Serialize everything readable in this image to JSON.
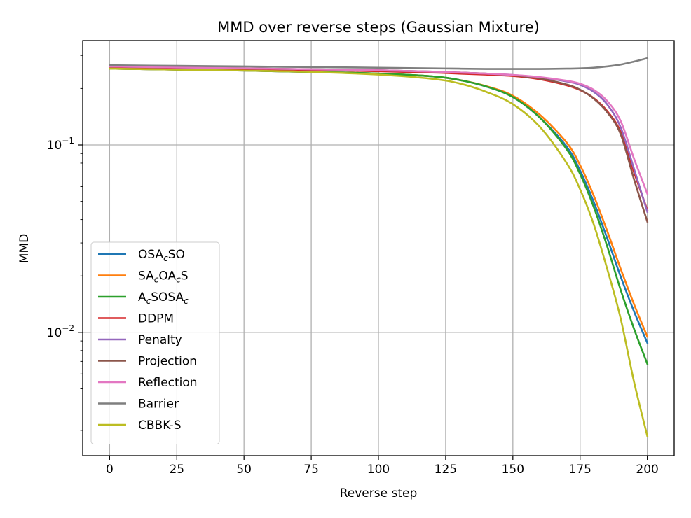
{
  "chart_data": {
    "type": "line",
    "title": "MMD over reverse steps (Gaussian Mixture)",
    "xlabel": "Reverse step",
    "ylabel": "MMD",
    "xlim": [
      -10,
      210
    ],
    "ylim": [
      0.0022,
      0.36
    ],
    "yscale": "log",
    "grid": true,
    "legend_position": "lower-left",
    "x_ticks": [
      0,
      25,
      50,
      75,
      100,
      125,
      150,
      175,
      200
    ],
    "y_ticks": [
      {
        "value": 0.1,
        "base": "10",
        "exp": "−1"
      },
      {
        "value": 0.01,
        "base": "10",
        "exp": "−2"
      }
    ],
    "x": [
      0,
      25,
      50,
      75,
      100,
      120,
      130,
      140,
      150,
      160,
      170,
      175,
      180,
      185,
      190,
      195,
      200
    ],
    "series": [
      {
        "name": "OSA_cSO",
        "label_parts": [
          [
            "OSA",
            ""
          ],
          [
            "c",
            "sub"
          ],
          [
            "SO",
            ""
          ]
        ],
        "color": "#1f77b4",
        "values": [
          0.255,
          0.252,
          0.249,
          0.245,
          0.24,
          0.232,
          0.222,
          0.205,
          0.18,
          0.14,
          0.098,
          0.073,
          0.05,
          0.032,
          0.02,
          0.013,
          0.0088
        ]
      },
      {
        "name": "SA_cOA_cS",
        "label_parts": [
          [
            "SA",
            ""
          ],
          [
            "c",
            "sub"
          ],
          [
            "OA",
            ""
          ],
          [
            "c",
            "sub"
          ],
          [
            "S",
            ""
          ]
        ],
        "color": "#ff7f0e",
        "values": [
          0.255,
          0.252,
          0.249,
          0.245,
          0.24,
          0.232,
          0.222,
          0.206,
          0.183,
          0.145,
          0.103,
          0.078,
          0.054,
          0.035,
          0.022,
          0.0142,
          0.0095
        ]
      },
      {
        "name": "A_cSOSA_c",
        "label_parts": [
          [
            "A",
            ""
          ],
          [
            "c",
            "sub"
          ],
          [
            "SOSA",
            ""
          ],
          [
            "c",
            "sub"
          ]
        ],
        "color": "#2ca02c",
        "values": [
          0.255,
          0.252,
          0.249,
          0.245,
          0.24,
          0.232,
          0.222,
          0.205,
          0.18,
          0.14,
          0.095,
          0.07,
          0.047,
          0.029,
          0.017,
          0.0105,
          0.0068
        ]
      },
      {
        "name": "DDPM",
        "label_parts": [
          [
            "DDPM",
            ""
          ]
        ],
        "color": "#d62728",
        "values": [
          0.26,
          0.257,
          0.254,
          0.251,
          0.247,
          0.243,
          0.24,
          0.237,
          0.233,
          0.224,
          0.208,
          0.196,
          0.178,
          0.152,
          0.118,
          0.072,
          0.045
        ]
      },
      {
        "name": "Penalty",
        "label_parts": [
          [
            "Penalty",
            ""
          ]
        ],
        "color": "#9467bd",
        "values": [
          0.262,
          0.259,
          0.256,
          0.253,
          0.25,
          0.246,
          0.243,
          0.24,
          0.236,
          0.229,
          0.218,
          0.209,
          0.192,
          0.165,
          0.125,
          0.075,
          0.044
        ]
      },
      {
        "name": "Projection",
        "label_parts": [
          [
            "Projection",
            ""
          ]
        ],
        "color": "#8c564b",
        "values": [
          0.262,
          0.259,
          0.256,
          0.253,
          0.25,
          0.246,
          0.243,
          0.24,
          0.235,
          0.226,
          0.21,
          0.197,
          0.177,
          0.15,
          0.115,
          0.066,
          0.039
        ]
      },
      {
        "name": "Reflection",
        "label_parts": [
          [
            "Reflection",
            ""
          ]
        ],
        "color": "#e377c2",
        "values": [
          0.262,
          0.259,
          0.256,
          0.253,
          0.25,
          0.246,
          0.243,
          0.24,
          0.236,
          0.23,
          0.22,
          0.212,
          0.197,
          0.172,
          0.135,
          0.085,
          0.055
        ]
      },
      {
        "name": "Barrier",
        "label_parts": [
          [
            "Barrier",
            ""
          ]
        ],
        "color": "#7f7f7f",
        "values": [
          0.266,
          0.264,
          0.262,
          0.26,
          0.258,
          0.256,
          0.255,
          0.254,
          0.254,
          0.254,
          0.255,
          0.256,
          0.258,
          0.262,
          0.268,
          0.278,
          0.29
        ]
      },
      {
        "name": "CBBK-S",
        "label_parts": [
          [
            "CBBK-S",
            ""
          ]
        ],
        "color": "#bcbd22",
        "values": [
          0.255,
          0.252,
          0.249,
          0.245,
          0.237,
          0.225,
          0.213,
          0.192,
          0.165,
          0.125,
          0.08,
          0.058,
          0.038,
          0.022,
          0.012,
          0.0055,
          0.0028
        ]
      }
    ]
  }
}
